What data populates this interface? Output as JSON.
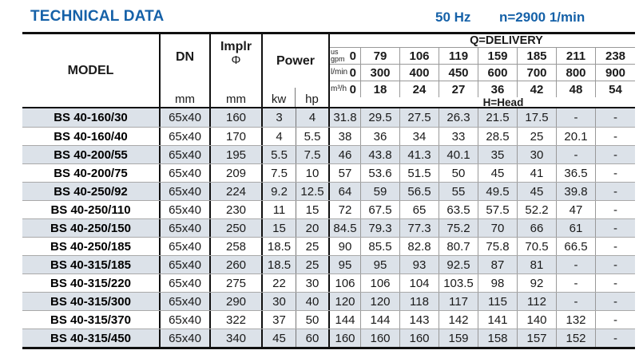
{
  "header": {
    "title": "TECHNICAL DATA",
    "frequency": "50 Hz",
    "speed": "n=2900 1/min"
  },
  "table": {
    "columns": {
      "model": "MODEL",
      "dn": "DN",
      "dn_unit": "mm",
      "implr": "Implr",
      "implr_symbol": "Φ",
      "implr_unit": "mm",
      "power": "Power",
      "power_unit_kw": "kw",
      "power_unit_hp": "hp"
    },
    "delivery": {
      "title": "Q=DELIVERY",
      "head_label": "H=Head",
      "unit_rows": [
        {
          "unit_lines": [
            "us",
            "gpm"
          ],
          "values": [
            "0",
            "79",
            "106",
            "119",
            "159",
            "185",
            "211",
            "238"
          ]
        },
        {
          "unit_lines": [
            "l/min"
          ],
          "values": [
            "0",
            "300",
            "400",
            "450",
            "600",
            "700",
            "800",
            "900"
          ]
        },
        {
          "unit_lines": [
            "m³/h"
          ],
          "values": [
            "0",
            "18",
            "24",
            "27",
            "36",
            "42",
            "48",
            "54"
          ]
        }
      ]
    },
    "rows": [
      {
        "model": "BS 40-160/30",
        "dn": "65x40",
        "implr": "160",
        "kw": "3",
        "hp": "4",
        "head": [
          "31.8",
          "29.5",
          "27.5",
          "26.3",
          "21.5",
          "17.5",
          "-",
          "-"
        ]
      },
      {
        "model": "BS 40-160/40",
        "dn": "65x40",
        "implr": "170",
        "kw": "4",
        "hp": "5.5",
        "head": [
          "38",
          "36",
          "34",
          "33",
          "28.5",
          "25",
          "20.1",
          "-"
        ]
      },
      {
        "model": "BS 40-200/55",
        "dn": "65x40",
        "implr": "195",
        "kw": "5.5",
        "hp": "7.5",
        "head": [
          "46",
          "43.8",
          "41.3",
          "40.1",
          "35",
          "30",
          "-",
          "-"
        ]
      },
      {
        "model": "BS 40-200/75",
        "dn": "65x40",
        "implr": "209",
        "kw": "7.5",
        "hp": "10",
        "head": [
          "57",
          "53.6",
          "51.5",
          "50",
          "45",
          "41",
          "36.5",
          "-"
        ]
      },
      {
        "model": "BS 40-250/92",
        "dn": "65x40",
        "implr": "224",
        "kw": "9.2",
        "hp": "12.5",
        "head": [
          "64",
          "59",
          "56.5",
          "55",
          "49.5",
          "45",
          "39.8",
          "-"
        ]
      },
      {
        "model": "BS 40-250/110",
        "dn": "65x40",
        "implr": "230",
        "kw": "11",
        "hp": "15",
        "head": [
          "72",
          "67.5",
          "65",
          "63.5",
          "57.5",
          "52.2",
          "47",
          "-"
        ]
      },
      {
        "model": "BS 40-250/150",
        "dn": "65x40",
        "implr": "250",
        "kw": "15",
        "hp": "20",
        "head": [
          "84.5",
          "79.3",
          "77.3",
          "75.2",
          "70",
          "66",
          "61",
          "-"
        ]
      },
      {
        "model": "BS 40-250/185",
        "dn": "65x40",
        "implr": "258",
        "kw": "18.5",
        "hp": "25",
        "head": [
          "90",
          "85.5",
          "82.8",
          "80.7",
          "75.8",
          "70.5",
          "66.5",
          "-"
        ]
      },
      {
        "model": "BS 40-315/185",
        "dn": "65x40",
        "implr": "260",
        "kw": "18.5",
        "hp": "25",
        "head": [
          "95",
          "95",
          "93",
          "92.5",
          "87",
          "81",
          "-",
          "-"
        ]
      },
      {
        "model": "BS 40-315/220",
        "dn": "65x40",
        "implr": "275",
        "kw": "22",
        "hp": "30",
        "head": [
          "106",
          "106",
          "104",
          "103.5",
          "98",
          "92",
          "-",
          "-"
        ]
      },
      {
        "model": "BS 40-315/300",
        "dn": "65x40",
        "implr": "290",
        "kw": "30",
        "hp": "40",
        "head": [
          "120",
          "120",
          "118",
          "117",
          "115",
          "112",
          "-",
          "-"
        ]
      },
      {
        "model": "BS 40-315/370",
        "dn": "65x40",
        "implr": "322",
        "kw": "37",
        "hp": "50",
        "head": [
          "144",
          "144",
          "143",
          "142",
          "141",
          "140",
          "132",
          "-"
        ]
      },
      {
        "model": "BS 40-315/450",
        "dn": "65x40",
        "implr": "340",
        "kw": "45",
        "hp": "60",
        "head": [
          "160",
          "160",
          "160",
          "159",
          "158",
          "157",
          "152",
          "-"
        ]
      }
    ],
    "colors": {
      "accent_blue": "#1561a8",
      "row_shade": "#dce2e9"
    }
  }
}
